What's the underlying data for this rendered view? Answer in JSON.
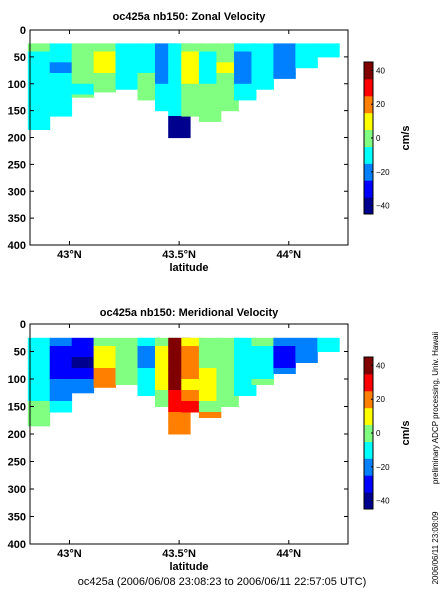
{
  "figure": {
    "footer": "oc425a (2006/06/08 23:08:23 to 2006/06/11 22:57:05 UTC)",
    "side_note_1": "preliminary ADCP processing,  Univ. Hawaii",
    "side_note_2": "2006/06/11 23:08:09"
  },
  "colors": {
    "colormap": [
      "#00008f",
      "#0000ff",
      "#0080ff",
      "#00ffff",
      "#80ff80",
      "#ffff00",
      "#ff8000",
      "#ff0000",
      "#800000"
    ],
    "nodata": "#ffffff",
    "frame": "#000000"
  },
  "chart_data": [
    {
      "type": "heatmap",
      "title": "oc425a nb150: Zonal Velocity",
      "xlabel": "latitude",
      "ylabel": "",
      "x_ticks": [
        43.0,
        43.5,
        44.0
      ],
      "x_tick_labels": [
        "43°N",
        "43.5°N",
        "44°N"
      ],
      "xlim": [
        42.82,
        44.27
      ],
      "y_ticks": [
        0,
        50,
        100,
        150,
        200,
        250,
        300,
        350,
        400
      ],
      "y_tick_labels": [
        "0",
        "50",
        "100",
        "150",
        "200",
        "250",
        "300",
        "350",
        "400"
      ],
      "ylim": [
        400,
        0
      ],
      "depth_bins": [
        30,
        50,
        70,
        90,
        110,
        130,
        150,
        170,
        190
      ],
      "colorbar": {
        "label": "cm/s",
        "ticks": [
          40,
          20,
          0,
          -20,
          -40
        ],
        "tick_labels": [
          "40",
          "20",
          "0",
          "−20",
          "−40"
        ],
        "range": [
          -45,
          45
        ]
      },
      "profiles": [
        {
          "lat": 42.86,
          "max_depth": 185,
          "values": [
            -5,
            -8,
            -10,
            -12,
            -10,
            -8,
            -6,
            -6,
            -6
          ]
        },
        {
          "lat": 42.96,
          "max_depth": 160,
          "values": [
            -12,
            -15,
            -18,
            -14,
            -10,
            -8,
            -6,
            -5,
            -5
          ]
        },
        {
          "lat": 43.06,
          "max_depth": 125,
          "values": [
            2,
            0,
            -2,
            -4,
            -6,
            -5,
            -4,
            -3,
            -3
          ]
        },
        {
          "lat": 43.16,
          "max_depth": 115,
          "values": [
            4,
            6,
            8,
            4,
            2,
            0,
            -2,
            -2,
            -2
          ]
        },
        {
          "lat": 43.26,
          "max_depth": 110,
          "values": [
            -8,
            -10,
            -12,
            -10,
            -8,
            -6,
            -4,
            -4,
            -4
          ]
        },
        {
          "lat": 43.36,
          "max_depth": 130,
          "values": [
            -6,
            -8,
            -6,
            -4,
            -2,
            -2,
            0,
            0,
            0
          ]
        },
        {
          "lat": 43.44,
          "max_depth": 150,
          "values": [
            -18,
            -22,
            -25,
            -20,
            -15,
            -12,
            -10,
            -10,
            -10
          ]
        },
        {
          "lat": 43.5,
          "max_depth": 210,
          "values": [
            -10,
            -12,
            -14,
            -12,
            -10,
            -8,
            -8,
            -40,
            -45
          ]
        },
        {
          "lat": 43.56,
          "max_depth": 160,
          "values": [
            5,
            8,
            10,
            6,
            4,
            2,
            0,
            0,
            0
          ]
        },
        {
          "lat": 43.64,
          "max_depth": 170,
          "values": [
            -5,
            -6,
            -8,
            -6,
            -4,
            -2,
            -2,
            -2,
            -2
          ]
        },
        {
          "lat": 43.72,
          "max_depth": 150,
          "values": [
            2,
            4,
            6,
            4,
            2,
            0,
            0,
            0,
            0
          ]
        },
        {
          "lat": 43.8,
          "max_depth": 130,
          "values": [
            -15,
            -20,
            -22,
            -18,
            -14,
            -10,
            -8,
            -8,
            -8
          ]
        },
        {
          "lat": 43.88,
          "max_depth": 110,
          "values": [
            -10,
            -12,
            -14,
            -12,
            -10,
            -8,
            -6,
            -6,
            -6
          ]
        },
        {
          "lat": 43.98,
          "max_depth": 90,
          "values": [
            -20,
            -25,
            -28,
            -24,
            -20,
            -16,
            -14,
            -14,
            -14
          ]
        },
        {
          "lat": 44.08,
          "max_depth": 70,
          "values": [
            -12,
            -14,
            -16,
            -12,
            -10,
            -8,
            -6,
            -6,
            -6
          ]
        },
        {
          "lat": 44.18,
          "max_depth": 50,
          "values": [
            -6,
            -8,
            -10,
            -8,
            -6,
            -4,
            -2,
            -2,
            -2
          ]
        }
      ]
    },
    {
      "type": "heatmap",
      "title": "oc425a nb150: Meridional Velocity",
      "xlabel": "latitude",
      "ylabel": "",
      "x_ticks": [
        43.0,
        43.5,
        44.0
      ],
      "x_tick_labels": [
        "43°N",
        "43.5°N",
        "44°N"
      ],
      "xlim": [
        42.82,
        44.27
      ],
      "y_ticks": [
        0,
        50,
        100,
        150,
        200,
        250,
        300,
        350,
        400
      ],
      "y_tick_labels": [
        "0",
        "50",
        "100",
        "150",
        "200",
        "250",
        "300",
        "350",
        "400"
      ],
      "ylim": [
        400,
        0
      ],
      "depth_bins": [
        30,
        50,
        70,
        90,
        110,
        130,
        150,
        170,
        190
      ],
      "colorbar": {
        "label": "cm/s",
        "ticks": [
          40,
          20,
          0,
          -20,
          -40
        ],
        "tick_labels": [
          "40",
          "20",
          "0",
          "−20",
          "−40"
        ],
        "range": [
          -45,
          45
        ]
      },
      "profiles": [
        {
          "lat": 42.86,
          "max_depth": 185,
          "values": [
            -8,
            -10,
            -10,
            -8,
            -6,
            -6,
            -5,
            -5,
            -5
          ]
        },
        {
          "lat": 42.96,
          "max_depth": 160,
          "values": [
            -20,
            -30,
            -35,
            -30,
            -25,
            -20,
            -15,
            -12,
            -12
          ]
        },
        {
          "lat": 43.06,
          "max_depth": 125,
          "values": [
            -30,
            -38,
            -40,
            -35,
            -28,
            -20,
            -15,
            -12,
            -12
          ]
        },
        {
          "lat": 43.16,
          "max_depth": 115,
          "values": [
            5,
            10,
            15,
            20,
            25,
            18,
            10,
            8,
            8
          ]
        },
        {
          "lat": 43.26,
          "max_depth": 110,
          "values": [
            0,
            2,
            4,
            2,
            0,
            -2,
            -4,
            -4,
            -4
          ]
        },
        {
          "lat": 43.36,
          "max_depth": 130,
          "values": [
            -15,
            -18,
            -20,
            -16,
            -12,
            -10,
            -8,
            -8,
            -8
          ]
        },
        {
          "lat": 43.44,
          "max_depth": 150,
          "values": [
            5,
            8,
            10,
            8,
            6,
            4,
            2,
            2,
            2
          ]
        },
        {
          "lat": 43.5,
          "max_depth": 210,
          "values": [
            40,
            45,
            45,
            45,
            40,
            35,
            30,
            25,
            20
          ]
        },
        {
          "lat": 43.56,
          "max_depth": 160,
          "values": [
            15,
            20,
            25,
            20,
            15,
            25,
            30,
            30,
            30
          ]
        },
        {
          "lat": 43.64,
          "max_depth": 170,
          "values": [
            -5,
            0,
            5,
            10,
            15,
            10,
            5,
            25,
            25
          ]
        },
        {
          "lat": 43.72,
          "max_depth": 150,
          "values": [
            0,
            2,
            4,
            2,
            0,
            -2,
            -4,
            -4,
            -4
          ]
        },
        {
          "lat": 43.8,
          "max_depth": 130,
          "values": [
            -10,
            -12,
            -14,
            -12,
            -10,
            -8,
            -6,
            20,
            20
          ]
        },
        {
          "lat": 43.88,
          "max_depth": 110,
          "values": [
            -5,
            -6,
            -8,
            -6,
            -4,
            -2,
            -2,
            -2,
            -2
          ]
        },
        {
          "lat": 43.98,
          "max_depth": 90,
          "values": [
            -25,
            -30,
            -32,
            -28,
            -24,
            -20,
            -16,
            -16,
            -16
          ]
        },
        {
          "lat": 44.08,
          "max_depth": 70,
          "values": [
            -20,
            -22,
            -24,
            -20,
            -16,
            -12,
            -10,
            -10,
            -10
          ]
        },
        {
          "lat": 44.18,
          "max_depth": 50,
          "values": [
            -10,
            -12,
            -14,
            -12,
            -10,
            -8,
            -6,
            -6,
            -6
          ]
        }
      ]
    }
  ]
}
